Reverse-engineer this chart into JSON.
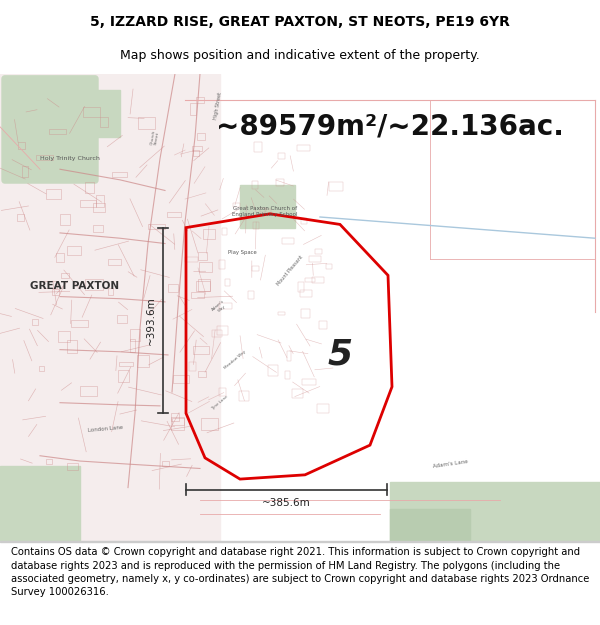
{
  "title_line1": "5, IZZARD RISE, GREAT PAXTON, ST NEOTS, PE19 6YR",
  "title_line2": "Map shows position and indicative extent of the property.",
  "area_text": "~89579m²/~22.136ac.",
  "property_number": "5",
  "measurement_vertical": "~393.6m",
  "measurement_horizontal": "~385.6m",
  "legal_text": "Contains OS data © Crown copyright and database right 2021. This information is subject to Crown copyright and database rights 2023 and is reproduced with the permission of HM Land Registry. The polygons (including the associated geometry, namely x, y co-ordinates) are subject to Crown copyright and database rights 2023 Ordnance Survey 100026316.",
  "title_fontsize": 10,
  "subtitle_fontsize": 9,
  "area_fontsize": 20,
  "legal_fontsize": 7.2,
  "map_bg_color": "#faf8f8",
  "title_bg_color": "#ffffff",
  "legal_bg_color": "#ffffff",
  "red_polygon_color": "#dd0000",
  "light_red_color": "#e8aaaa",
  "green_color": "#c8d8c0",
  "urban_bg": "#f5eded",
  "field_bg": "#fafafa",
  "road_color": "#cc8888",
  "label_dark": "#444444",
  "label_light": "#777777",
  "blue_line_color": "#aac8dd",
  "annotation_color": "#222222",
  "meas_line_color": "#333333"
}
